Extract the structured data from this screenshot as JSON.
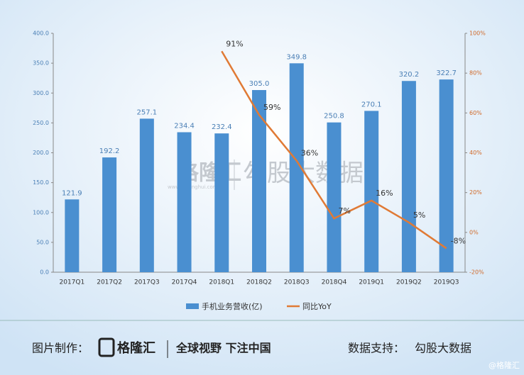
{
  "chart_data": {
    "type": "bar_line",
    "categories": [
      "2017Q1",
      "2017Q2",
      "2017Q3",
      "2017Q4",
      "2018Q1",
      "2018Q2",
      "2018Q3",
      "2018Q4",
      "2019Q1",
      "2019Q2",
      "2019Q3"
    ],
    "series": [
      {
        "name": "手机业务营收(亿)",
        "color": "#4a8fd0",
        "type": "bar",
        "values": [
          121.9,
          192.2,
          257.1,
          234.4,
          232.4,
          305.0,
          349.8,
          250.8,
          270.1,
          320.2,
          322.7
        ],
        "value_labels": [
          "121.9",
          "192.2",
          "257.1",
          "234.4",
          "232.4",
          "305.0",
          "349.8",
          "250.8",
          "270.1",
          "320.2",
          "322.7"
        ]
      },
      {
        "name": "同比YoY",
        "color": "#e07a35",
        "type": "line",
        "axis": "y2",
        "values": [
          null,
          null,
          null,
          null,
          91,
          59,
          36,
          7,
          16,
          5,
          -8
        ],
        "value_labels": [
          null,
          null,
          null,
          null,
          "91%",
          "59%",
          "36%",
          "7%",
          "16%",
          "5%",
          "-8%"
        ]
      }
    ],
    "ylim": [
      0,
      400
    ],
    "yticks": [
      {
        "value": 0,
        "label": "0.0"
      },
      {
        "value": 50,
        "label": "50.0"
      },
      {
        "value": 100,
        "label": "100.0"
      },
      {
        "value": 150,
        "label": "150.0"
      },
      {
        "value": 200,
        "label": "200.0"
      },
      {
        "value": 250,
        "label": "250.0"
      },
      {
        "value": 300,
        "label": "300.0"
      },
      {
        "value": 350,
        "label": "350.0"
      },
      {
        "value": 400,
        "label": "400.0"
      }
    ],
    "y2lim": [
      -20,
      100
    ],
    "y2ticks": [
      {
        "value": -20,
        "label": "-20%"
      },
      {
        "value": 0,
        "label": "0%"
      },
      {
        "value": 20,
        "label": "20%"
      },
      {
        "value": 40,
        "label": "40%"
      },
      {
        "value": 60,
        "label": "60%"
      },
      {
        "value": 80,
        "label": "80%"
      },
      {
        "value": 100,
        "label": "100%"
      }
    ],
    "legend": "bottom"
  },
  "watermark": {
    "logo": "格隆汇",
    "site": "www.gelonghui.com",
    "brand": "勾股大数据"
  },
  "footer": {
    "made_by": "图片制作：",
    "logo": "格隆汇",
    "slogan": "全球视野 下注中国",
    "data_by": "数据支持：",
    "source": "勾股大数据",
    "handle": "@格隆汇"
  }
}
